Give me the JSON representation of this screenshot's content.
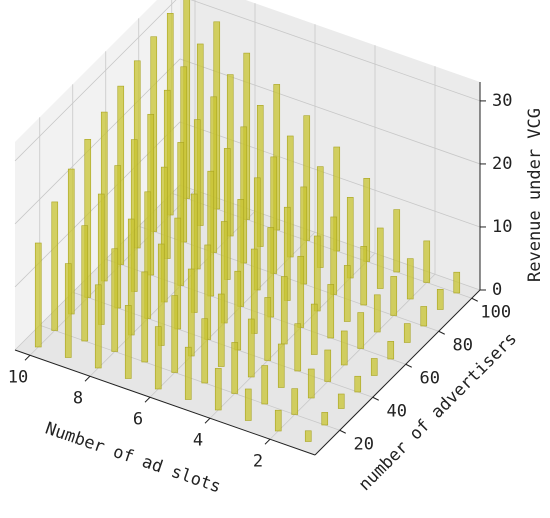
{
  "chart_data": {
    "type": "bar3d",
    "x_label": "Number of ad slots",
    "y_label": "number of advertisers",
    "z_label": "Revenue under VCG",
    "x": [
      1,
      2,
      3,
      4,
      5,
      6,
      7,
      8,
      9,
      10
    ],
    "y": [
      10,
      20,
      30,
      40,
      50,
      60,
      70,
      80,
      90,
      100
    ],
    "values": [
      [
        1.7,
        2.0,
        2.3,
        2.5,
        2.7,
        2.8,
        3.0,
        3.1,
        3.2,
        3.3
      ],
      [
        3.3,
        4.1,
        4.6,
        5.0,
        5.4,
        5.7,
        5.9,
        6.2,
        6.4,
        6.6
      ],
      [
        5.0,
        6.1,
        6.9,
        7.5,
        8.0,
        8.5,
        8.9,
        9.3,
        9.6,
        9.9
      ],
      [
        6.6,
        8.1,
        9.2,
        10.0,
        10.7,
        11.3,
        11.9,
        12.3,
        12.8,
        13.2
      ],
      [
        8.3,
        10.2,
        11.5,
        12.5,
        13.4,
        14.2,
        14.8,
        15.4,
        16.0,
        16.5
      ],
      [
        9.9,
        12.2,
        13.8,
        15.0,
        16.1,
        17.0,
        17.8,
        18.5,
        19.2,
        19.8
      ],
      [
        11.6,
        14.3,
        16.1,
        17.6,
        18.8,
        19.8,
        20.8,
        21.6,
        22.4,
        23.1
      ],
      [
        13.2,
        16.3,
        18.4,
        20.1,
        21.4,
        22.7,
        23.7,
        24.7,
        25.6,
        26.4
      ],
      [
        14.9,
        18.3,
        20.7,
        22.6,
        24.1,
        25.5,
        26.7,
        27.8,
        28.8,
        29.7
      ],
      [
        16.5,
        20.4,
        23.0,
        25.1,
        26.8,
        28.3,
        29.7,
        30.9,
        32.0,
        33.0
      ]
    ],
    "color": "#c8c432",
    "xlim": [
      0.5,
      10.5
    ],
    "ylim": [
      5,
      105
    ],
    "zlim": [
      0,
      33
    ],
    "xticks": [
      2,
      4,
      6,
      8,
      10
    ],
    "yticks": [
      20,
      40,
      60,
      80,
      100
    ],
    "zticks": [
      0,
      10,
      20,
      30
    ],
    "grid": true
  }
}
